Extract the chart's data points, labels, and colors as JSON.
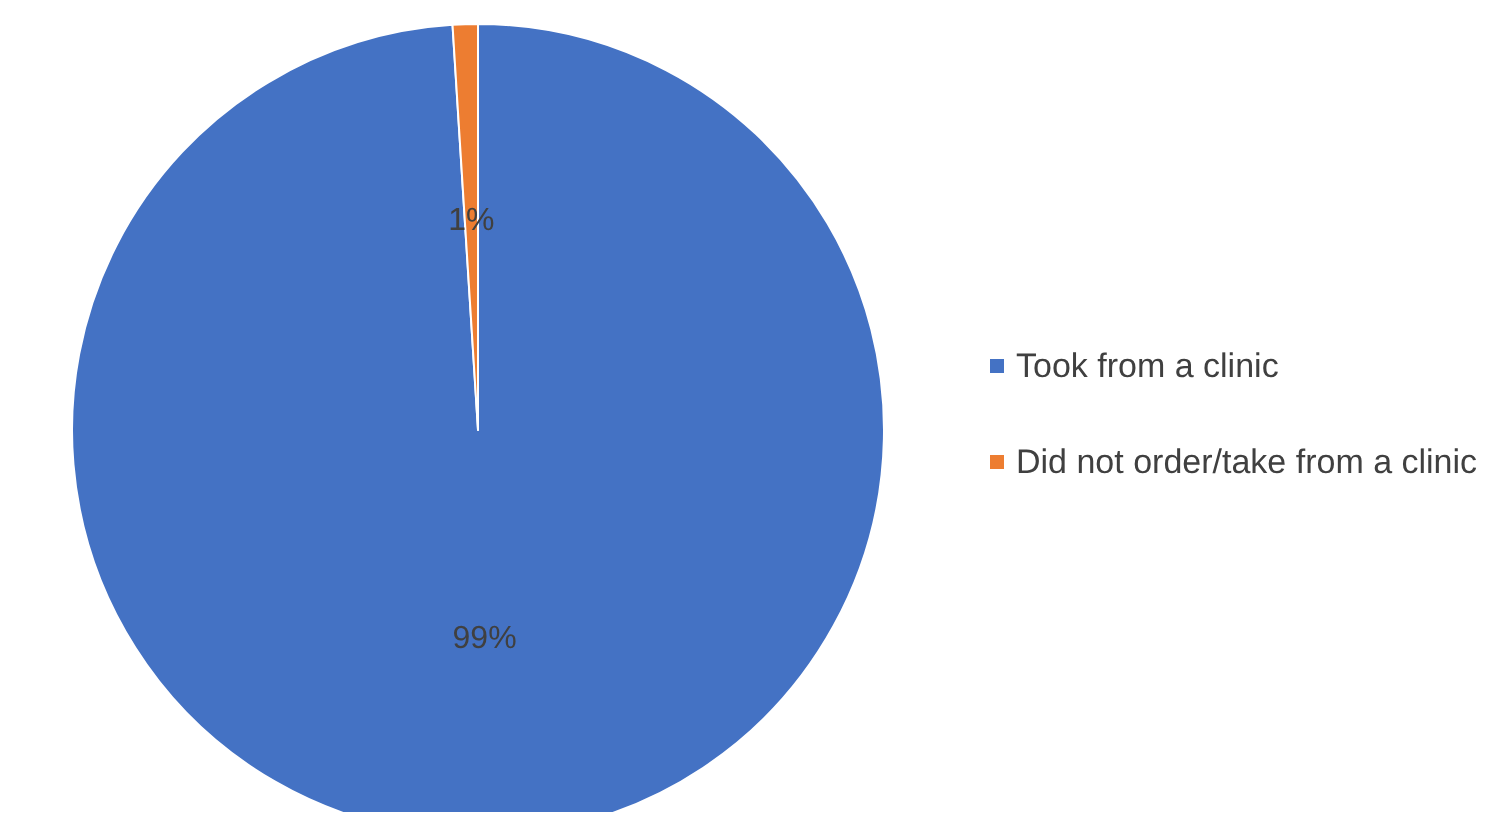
{
  "chart_data": {
    "type": "pie",
    "categories": [
      "Took from a clinic",
      "Did not order/take from a clinic"
    ],
    "values": [
      99,
      1
    ],
    "value_labels": [
      "99%",
      "1%"
    ],
    "colors": [
      "#4472c4",
      "#ed7d31"
    ],
    "legend": "right"
  }
}
